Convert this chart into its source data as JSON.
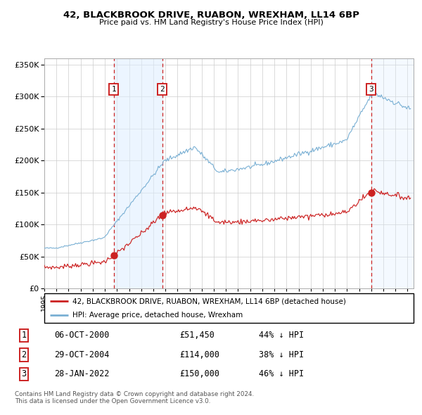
{
  "title1": "42, BLACKBROOK DRIVE, RUABON, WREXHAM, LL14 6BP",
  "title2": "Price paid vs. HM Land Registry's House Price Index (HPI)",
  "hpi_color": "#7ab0d4",
  "red_color": "#cc2222",
  "sale1_price": 51450,
  "sale2_price": 114000,
  "sale3_price": 150000,
  "legend_red": "42, BLACKBROOK DRIVE, RUABON, WREXHAM, LL14 6BP (detached house)",
  "legend_blue": "HPI: Average price, detached house, Wrexham",
  "table_rows": [
    [
      "1",
      "06-OCT-2000",
      "£51,450",
      "44% ↓ HPI"
    ],
    [
      "2",
      "29-OCT-2004",
      "£114,000",
      "38% ↓ HPI"
    ],
    [
      "3",
      "28-JAN-2022",
      "£150,000",
      "46% ↓ HPI"
    ]
  ],
  "footnote1": "Contains HM Land Registry data © Crown copyright and database right 2024.",
  "footnote2": "This data is licensed under the Open Government Licence v3.0.",
  "ylim_max": 360000,
  "yticks": [
    0,
    50000,
    100000,
    150000,
    200000,
    250000,
    300000,
    350000
  ],
  "span_color": "#ddeeff",
  "grid_color": "#cccccc",
  "shade_alpha": 0.55
}
